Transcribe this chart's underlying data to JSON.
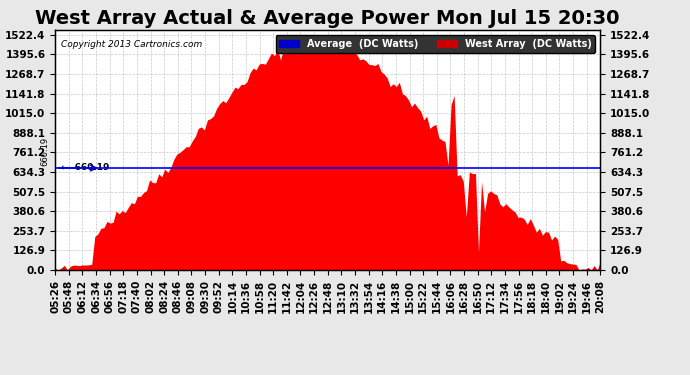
{
  "title": "West Array Actual & Average Power Mon Jul 15 20:30",
  "copyright": "Copyright 2013 Cartronics.com",
  "average_value": 660.19,
  "y_max": 1522.4,
  "y_min": 0.0,
  "y_ticks": [
    0.0,
    126.9,
    253.7,
    380.6,
    507.5,
    634.3,
    761.2,
    888.1,
    1015.0,
    1141.8,
    1268.7,
    1395.6,
    1522.4
  ],
  "background_color": "#f0f0f0",
  "plot_bg_color": "#ffffff",
  "grid_color": "#cccccc",
  "fill_color": "#ff0000",
  "line_color": "#0000ff",
  "legend_avg_label": "Average  (DC Watts)",
  "legend_west_label": "West Array  (DC Watts)",
  "legend_avg_color": "#0000cc",
  "legend_west_color": "#cc0000",
  "title_fontsize": 14,
  "tick_fontsize": 7.5,
  "x_tick_labels": [
    "05:26",
    "05:48",
    "06:12",
    "06:34",
    "06:56",
    "07:18",
    "07:40",
    "08:02",
    "08:24",
    "08:46",
    "09:08",
    "09:30",
    "09:52",
    "10:14",
    "10:36",
    "10:58",
    "11:20",
    "11:42",
    "12:04",
    "12:26",
    "12:48",
    "13:10",
    "13:32",
    "13:54",
    "14:16",
    "14:38",
    "15:00",
    "15:22",
    "15:44",
    "16:06",
    "16:28",
    "16:50",
    "17:12",
    "17:34",
    "17:56",
    "18:18",
    "18:40",
    "19:02",
    "19:24",
    "19:46",
    "20:08"
  ]
}
